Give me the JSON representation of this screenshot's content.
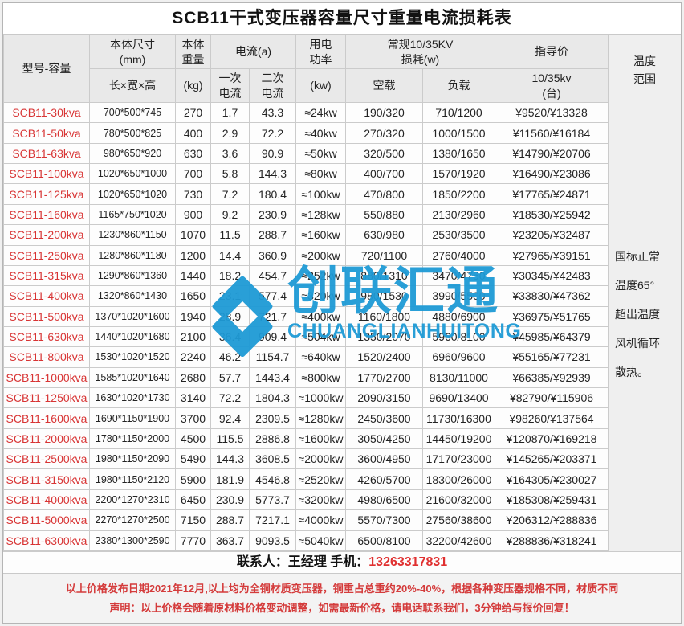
{
  "title": "SCB11干式变压器容量尺寸重量电流损耗表",
  "header": {
    "model": "型号-容量",
    "size_group": "本体尺寸\n(mm)",
    "size_sub": "长×宽×高",
    "weight_group": "本体\n重量",
    "weight_sub": "(kg)",
    "current_group": "电流(a)",
    "current_primary": "一次\n电流",
    "current_secondary": "二次\n电流",
    "power_group": "用电\n功率",
    "power_sub": "(kw)",
    "loss_group": "常规10/35KV\n损耗(w)",
    "loss_noload": "空载",
    "loss_load": "负载",
    "price_group": "指导价",
    "price_sub": "10/35kv\n(台)",
    "temp": "温度\n范围"
  },
  "temp_note": "国标正常\n温度65°\n超出温度\n风机循环\n 散热。",
  "rows": [
    [
      "SCB11-30kva",
      "700*500*745",
      "270",
      "1.7",
      "43.3",
      "≈24kw",
      "190/320",
      "710/1200",
      "¥9520/¥13328"
    ],
    [
      "SCB11-50kva",
      "780*500*825",
      "400",
      "2.9",
      "72.2",
      "≈40kw",
      "270/320",
      "1000/1500",
      "¥11560/¥16184"
    ],
    [
      "SCB11-63kva",
      "980*650*920",
      "630",
      "3.6",
      "90.9",
      "≈50kw",
      "320/500",
      "1380/1650",
      "¥14790/¥20706"
    ],
    [
      "SCB11-100kva",
      "1020*650*1000",
      "700",
      "5.8",
      "144.3",
      "≈80kw",
      "400/700",
      "1570/1920",
      "¥16490/¥23086"
    ],
    [
      "SCB11-125kva",
      "1020*650*1020",
      "730",
      "7.2",
      "180.4",
      "≈100kw",
      "470/800",
      "1850/2200",
      "¥17765/¥24871"
    ],
    [
      "SCB11-160kva",
      "1165*750*1020",
      "900",
      "9.2",
      "230.9",
      "≈128kw",
      "550/880",
      "2130/2960",
      "¥18530/¥25942"
    ],
    [
      "SCB11-200kva",
      "1230*860*1150",
      "1070",
      "11.5",
      "288.7",
      "≈160kw",
      "630/980",
      "2530/3500",
      "¥23205/¥32487"
    ],
    [
      "SCB11-250kva",
      "1280*860*1180",
      "1200",
      "14.4",
      "360.9",
      "≈200kw",
      "720/1100",
      "2760/4000",
      "¥27965/¥39151"
    ],
    [
      "SCB11-315kva",
      "1290*860*1360",
      "1440",
      "18.2",
      "454.7",
      "≈252kw",
      "880/1310",
      "3470/4750",
      "¥30345/¥42483"
    ],
    [
      "SCB11-400kva",
      "1320*860*1430",
      "1650",
      "23.1",
      "577.4",
      "≈320kw",
      "980/1530",
      "3990/5500",
      "¥33830/¥47362"
    ],
    [
      "SCB11-500kva",
      "1370*1020*1600",
      "1940",
      "28.9",
      "721.7",
      "≈400kw",
      "1160/1800",
      "4880/6900",
      "¥36975/¥51765"
    ],
    [
      "SCB11-630kva",
      "1440*1020*1680",
      "2100",
      "36.4",
      "909.4",
      "≈504kw",
      "1350/2070",
      "5960/8100",
      "¥45985/¥64379"
    ],
    [
      "SCB11-800kva",
      "1530*1020*1520",
      "2240",
      "46.2",
      "1154.7",
      "≈640kw",
      "1520/2400",
      "6960/9600",
      "¥55165/¥77231"
    ],
    [
      "SCB11-1000kva",
      "1585*1020*1640",
      "2680",
      "57.7",
      "1443.4",
      "≈800kw",
      "1770/2700",
      "8130/11000",
      "¥66385/¥92939"
    ],
    [
      "SCB11-1250kva",
      "1630*1020*1730",
      "3140",
      "72.2",
      "1804.3",
      "≈1000kw",
      "2090/3150",
      "9690/13400",
      "¥82790/¥115906"
    ],
    [
      "SCB11-1600kva",
      "1690*1150*1900",
      "3700",
      "92.4",
      "2309.5",
      "≈1280kw",
      "2450/3600",
      "11730/16300",
      "¥98260/¥137564"
    ],
    [
      "SCB11-2000kva",
      "1780*1150*2000",
      "4500",
      "115.5",
      "2886.8",
      "≈1600kw",
      "3050/4250",
      "14450/19200",
      "¥120870/¥169218"
    ],
    [
      "SCB11-2500kva",
      "1980*1150*2090",
      "5490",
      "144.3",
      "3608.5",
      "≈2000kw",
      "3600/4950",
      "17170/23000",
      "¥145265/¥203371"
    ],
    [
      "SCB11-3150kva",
      "1980*1150*2120",
      "5900",
      "181.9",
      "4546.8",
      "≈2520kw",
      "4260/5700",
      "18300/26000",
      "¥164305/¥230027"
    ],
    [
      "SCB11-4000kva",
      "2200*1270*2310",
      "6450",
      "230.9",
      "5773.7",
      "≈3200kw",
      "4980/6500",
      "21600/32000",
      "¥185308/¥259431"
    ],
    [
      "SCB11-5000kva",
      "2270*1270*2500",
      "7150",
      "288.7",
      "7217.1",
      "≈4000kw",
      "5570/7300",
      "27560/38600",
      "¥206312/¥288836"
    ],
    [
      "SCB11-6300kva",
      "2380*1300*2590",
      "7770",
      "363.7",
      "9093.5",
      "≈5040kw",
      "6500/8100",
      "32200/42600",
      "¥288836/¥318241"
    ]
  ],
  "contact": {
    "label": "联系人：王经理 手机：",
    "phone": "13263317831"
  },
  "disclaimer": {
    "line1": "以上价格发布日期2021年12月,以上均为全铜材质变压器，铜重占总重约20%-40%，根据各种变压器规格不同，材质不同",
    "line2": "声明：以上价格会随着原材料价格变动调整，如需最新价格，请电话联系我们，3分钟给与报价回复！"
  },
  "watermark": {
    "brand": "创联汇通",
    "brand_latin": "CHUANGLIANHUITONG",
    "color": "#1e9ad6"
  },
  "colors": {
    "model_red": "#d83434",
    "phone_red": "#e03030",
    "disclaimer_red": "#d43b3b",
    "header_bg": "#e9e9e9",
    "watermark_blue": "#1e9ad6"
  }
}
